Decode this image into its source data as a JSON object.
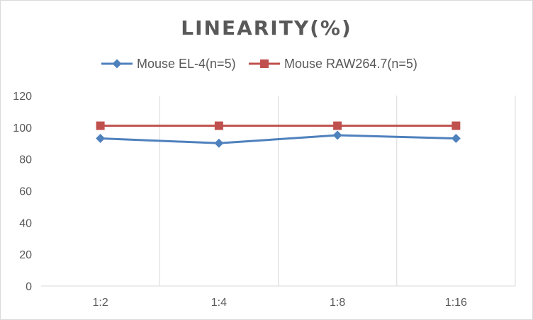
{
  "chart_data": {
    "type": "line",
    "title": "LINEARITY(%)",
    "xlabel": "",
    "ylabel": "",
    "categories": [
      "1:2",
      "1:4",
      "1:8",
      "1:16"
    ],
    "ylim": [
      0,
      120
    ],
    "yticks": [
      0,
      20,
      40,
      60,
      80,
      100,
      120
    ],
    "grid": "vertical",
    "legend_position": "top",
    "series": [
      {
        "name": "Mouse EL-4(n=5)",
        "values": [
          93,
          90,
          95,
          93
        ],
        "color": "#4F81BD",
        "marker": "diamond"
      },
      {
        "name": "Mouse RAW264.7(n=5)",
        "values": [
          101,
          101,
          101,
          101
        ],
        "color": "#C0504D",
        "marker": "square"
      }
    ]
  }
}
